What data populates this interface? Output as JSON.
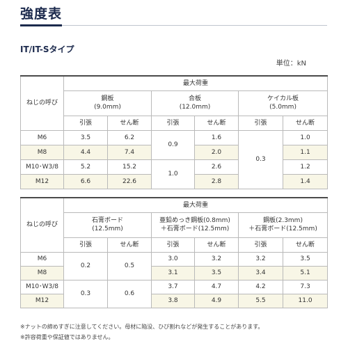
{
  "header": {
    "title": "強度表",
    "section": "IT/IT-Sタイプ",
    "unit": "単位：kN"
  },
  "table1": {
    "max_load": "最大荷重",
    "screw_header": "ねじの呼び",
    "groups": [
      {
        "name": "鋼板",
        "sub": "(9.0mm)"
      },
      {
        "name": "合板",
        "sub": "(12.0mm)"
      },
      {
        "name": "ケイカル板",
        "sub": "(5.0mm)"
      }
    ],
    "tension": "引張",
    "shear": "せん断",
    "rows": [
      {
        "size": "M6",
        "steel_t": "3.5",
        "steel_s": "6.2",
        "ply_s": "1.6",
        "cal_s": "1.0"
      },
      {
        "size": "M8",
        "steel_t": "4.4",
        "steel_s": "7.4",
        "ply_s": "2.0",
        "cal_s": "1.1"
      },
      {
        "size": "M10･W3/8",
        "steel_t": "5.2",
        "steel_s": "15.2",
        "ply_s": "2.6",
        "cal_s": "1.2"
      },
      {
        "size": "M12",
        "steel_t": "6.6",
        "steel_s": "22.6",
        "ply_s": "2.8",
        "cal_s": "1.4"
      }
    ],
    "ply_t_upper": "0.9",
    "ply_t_lower": "1.0",
    "cal_t": "0.3"
  },
  "table2": {
    "max_load": "最大荷重",
    "screw_header": "ねじの呼び",
    "groups": [
      {
        "name": "石膏ボード",
        "sub": "(12.5mm)"
      },
      {
        "name": "亜鉛めっき鋼板(0.8mm)",
        "sub": "＋石膏ボード(12.5mm)"
      },
      {
        "name": "鋼板(2.3mm)",
        "sub": "＋石膏ボード(12.5mm)"
      }
    ],
    "tension": "引張",
    "shear": "せん断",
    "rows": [
      {
        "size": "M6",
        "zn_t": "3.0",
        "zn_s": "3.2",
        "st_t": "3.2",
        "st_s": "3.5"
      },
      {
        "size": "M8",
        "zn_t": "3.1",
        "zn_s": "3.5",
        "st_t": "3.4",
        "st_s": "5.1"
      },
      {
        "size": "M10･W3/8",
        "zn_t": "3.7",
        "zn_s": "4.7",
        "st_t": "4.2",
        "st_s": "7.3"
      },
      {
        "size": "M12",
        "zn_t": "3.8",
        "zn_s": "4.9",
        "st_t": "5.5",
        "st_s": "11.0"
      }
    ],
    "gyp_t_upper": "0.2",
    "gyp_s_upper": "0.5",
    "gyp_t_lower": "0.3",
    "gyp_s_lower": "0.6"
  },
  "notes": [
    "※ナットの締めすぎに注意してください。母材に陥没、ひび割れなどが発生することがあります。",
    "※許容荷重や保証値ではありません。"
  ]
}
